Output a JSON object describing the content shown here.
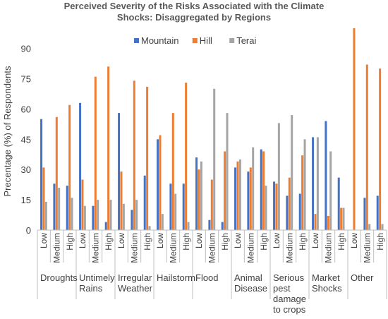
{
  "chart_data": {
    "type": "bar",
    "title_lines": [
      "Perceived Severity of the Risks Associated with the Climate",
      "Shocks: Disaggregated by Regions"
    ],
    "ylabel": "Precentage (%) of Respondents",
    "xlabel": "",
    "ylim": [
      0,
      100
    ],
    "yticks": [
      0,
      15,
      30,
      45,
      60,
      75,
      90
    ],
    "grid": false,
    "legend_position": "top",
    "levels": [
      "Low",
      "Medium",
      "High"
    ],
    "groups": [
      {
        "name_lines": [
          "Droughts"
        ]
      },
      {
        "name_lines": [
          "Untimely",
          "Rains"
        ]
      },
      {
        "name_lines": [
          "Irregular",
          "Weather"
        ]
      },
      {
        "name_lines": [
          "Hailstorm"
        ]
      },
      {
        "name_lines": [
          "Flood"
        ]
      },
      {
        "name_lines": [
          "Animal",
          "Disease"
        ]
      },
      {
        "name_lines": [
          "Serious",
          "pest",
          "damage",
          "to crops"
        ]
      },
      {
        "name_lines": [
          "Market",
          "Shocks"
        ]
      },
      {
        "name_lines": [
          "Other"
        ]
      }
    ],
    "series": [
      {
        "name": "Mountain",
        "color": "#4472C4",
        "values": [
          55,
          23,
          22,
          63,
          12,
          4,
          58,
          10,
          27,
          45,
          23,
          23,
          36,
          5,
          4,
          31,
          29,
          40,
          24,
          17,
          18,
          46,
          54,
          26,
          0,
          16,
          17
        ]
      },
      {
        "name": "Hill",
        "color": "#ED7D31",
        "values": [
          31,
          56,
          62,
          25,
          76,
          81,
          29,
          74,
          71,
          47,
          58,
          73,
          30,
          25,
          39,
          34,
          31,
          39,
          23,
          26,
          37,
          8,
          7,
          11,
          100,
          82,
          80
        ]
      },
      {
        "name": "Terai",
        "color": "#A5A5A5",
        "values": [
          14,
          21,
          16,
          12,
          15,
          15,
          13,
          15,
          2,
          8,
          18,
          4,
          34,
          70,
          58,
          35,
          41,
          22,
          53,
          57,
          45,
          46,
          39,
          11,
          0,
          3,
          3
        ]
      }
    ]
  }
}
